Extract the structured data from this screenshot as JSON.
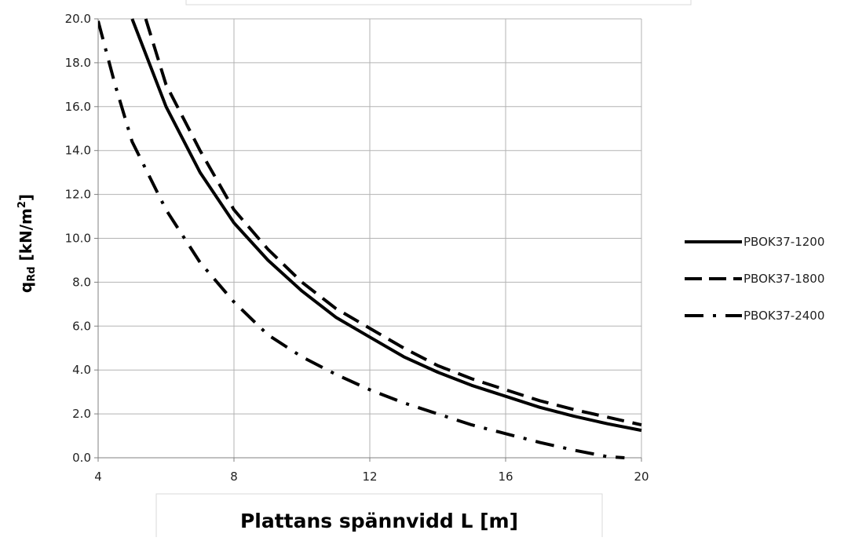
{
  "chart_data": {
    "type": "line",
    "title": "",
    "xlabel": "Plattans spännvidd L [m]",
    "ylabel": {
      "main": "q",
      "subscript": "Rd",
      "unit_prefix": " [kN/m",
      "unit_power": "2",
      "unit_suffix": "]"
    },
    "xlim": [
      4,
      20
    ],
    "ylim": [
      0,
      20
    ],
    "x_ticks": [
      "4",
      "8",
      "12",
      "16",
      "20"
    ],
    "y_ticks": [
      "0.0",
      "2.0",
      "4.0",
      "6.0",
      "8.0",
      "10.0",
      "12.0",
      "14.0",
      "16.0",
      "18.0",
      "20.0"
    ],
    "grid": true,
    "legend_position": "right",
    "series": [
      {
        "name": "PBOK37-1200",
        "style": "solid",
        "color": "#000000",
        "x": [
          5.0,
          6,
          7,
          8,
          9,
          10,
          11,
          12,
          13,
          14,
          15,
          16,
          17,
          18,
          19,
          20
        ],
        "y": [
          20.0,
          16.0,
          13.0,
          10.7,
          9.0,
          7.6,
          6.4,
          5.5,
          4.6,
          3.9,
          3.3,
          2.8,
          2.3,
          1.9,
          1.55,
          1.25
        ]
      },
      {
        "name": "PBOK37-1800",
        "style": "dashed",
        "color": "#000000",
        "x": [
          5.4,
          6,
          7,
          8,
          9,
          10,
          11,
          12,
          13,
          14,
          15,
          16,
          17,
          18,
          19,
          20
        ],
        "y": [
          20.0,
          17.0,
          14.0,
          11.3,
          9.5,
          8.0,
          6.8,
          5.9,
          5.0,
          4.2,
          3.6,
          3.1,
          2.6,
          2.2,
          1.85,
          1.5
        ]
      },
      {
        "name": "PBOK37-2400",
        "style": "dash-dot",
        "color": "#000000",
        "x": [
          4.0,
          4.5,
          5,
          6,
          7,
          8,
          9,
          10,
          11,
          12,
          13,
          14,
          15,
          16,
          17,
          18,
          19,
          19.5
        ],
        "y": [
          19.9,
          17.0,
          14.4,
          11.3,
          8.9,
          7.1,
          5.6,
          4.6,
          3.8,
          3.1,
          2.5,
          2.0,
          1.5,
          1.1,
          0.7,
          0.35,
          0.05,
          0.0
        ]
      }
    ]
  }
}
